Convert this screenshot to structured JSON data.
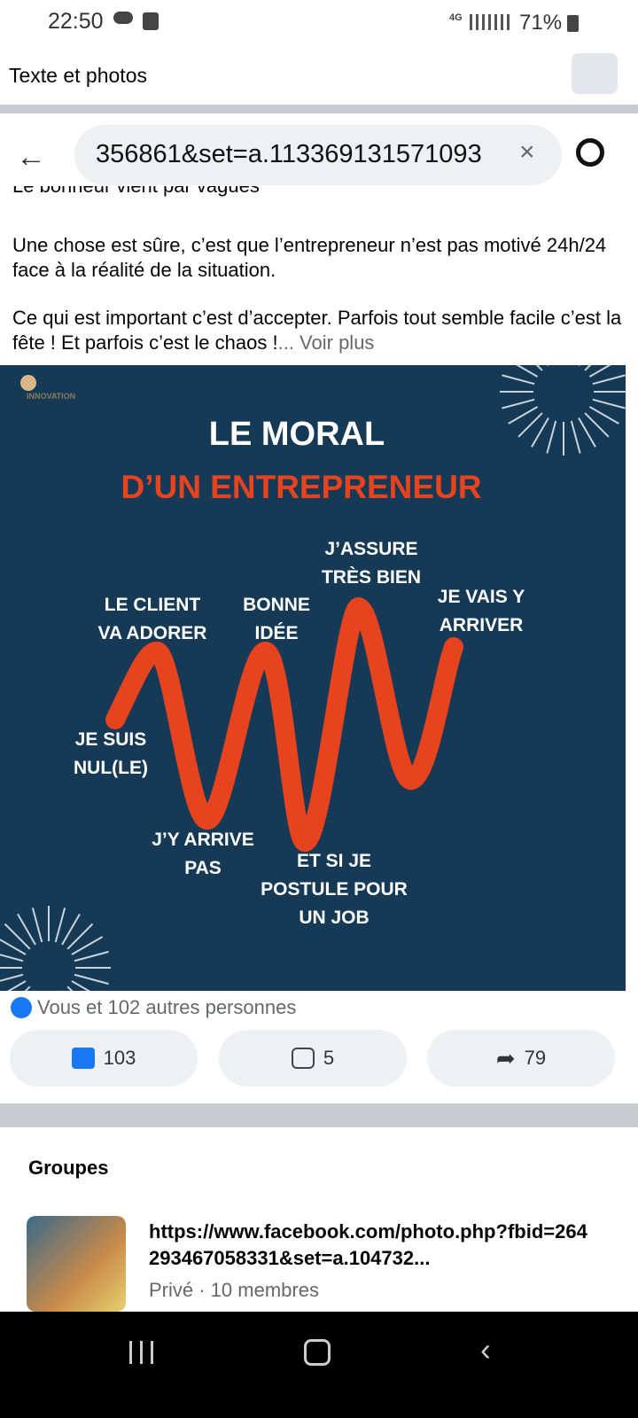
{
  "status_bar": {
    "time": "22:50",
    "network": "4G",
    "battery": "71%"
  },
  "header": {
    "title": "Texte et photos"
  },
  "search": {
    "query": "356861&set=a.113369131571093"
  },
  "post": {
    "cut_line": "Le bonheur vient par vagues",
    "paragraph_1": "Une chose est sûre, c’est que l’entrepreneur n’est pas motivé 24h/24 face à la réalité de la situation.",
    "paragraph_2": "Ce qui est important c’est d’accepter. Parfois tout semble facile c’est la fête !  Et parfois c’est le chaos !",
    "more": "... Voir plus"
  },
  "image": {
    "logo": "INNOVATION",
    "title": "LE MORAL",
    "subtitle": "D’UN ENTREPRENEUR",
    "labels": [
      {
        "lines": [
          "LE CLIENT",
          "VA ADORER"
        ]
      },
      {
        "lines": [
          "BONNE",
          "IDÉE"
        ]
      },
      {
        "lines": [
          "J’ASSURE",
          "TRÈS BIEN"
        ]
      },
      {
        "lines": [
          "JE VAIS Y",
          "ARRIVER"
        ]
      },
      {
        "lines": [
          "JE SUIS",
          "NUL(LE)"
        ]
      },
      {
        "lines": [
          "J’Y ARRIVE",
          "PAS"
        ]
      },
      {
        "lines": [
          "ET SI JE",
          "POSTULE POUR",
          "UN JOB"
        ]
      }
    ]
  },
  "reactions": {
    "summary": "Vous et 102 autres personnes",
    "likes": "103",
    "comments": "5",
    "shares": "79"
  },
  "groups": {
    "heading": "Groupes",
    "items": [
      {
        "name": "https://www.facebook.com/photo.php?fbid=264293467058331&set=a.104732...",
        "meta": "Privé · 10 membres"
      }
    ]
  }
}
